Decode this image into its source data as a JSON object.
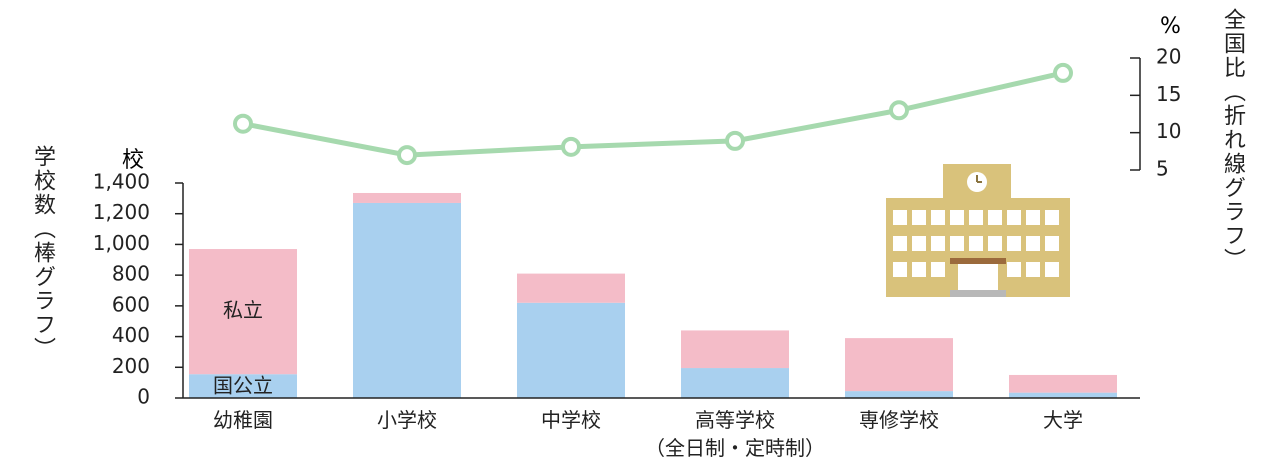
{
  "chart_data": {
    "type": "bar",
    "stacked": true,
    "y_label": "学校数（棒グラフ）",
    "y_unit": "校",
    "y2_label": "全国比（折れ線グラフ）",
    "y2_unit": "%",
    "categories": [
      "幼稚園",
      "小学校",
      "中学校",
      "高等学校\n（全日制・定時制）",
      "専修学校",
      "大学"
    ],
    "series": [
      {
        "name": "国公立",
        "color": "#a9d0ef",
        "values": [
          155,
          1270,
          620,
          195,
          45,
          35
        ]
      },
      {
        "name": "私立",
        "color": "#f4bcc8",
        "values": [
          815,
          65,
          190,
          245,
          345,
          115
        ]
      },
      {
        "type": "line",
        "axis": "y2",
        "color": "#a6d9ae",
        "values": [
          11.2,
          7.0,
          8.1,
          8.9,
          13.0,
          18.0
        ]
      }
    ],
    "ylim": [
      0,
      1400
    ],
    "yticks": [
      0,
      200,
      400,
      600,
      800,
      {
        "value": 1000,
        "label": "1,000"
      },
      {
        "value": 1200,
        "label": "1,200"
      },
      {
        "value": 1400,
        "label": "1,400"
      }
    ],
    "y2lim": [
      5,
      20
    ],
    "y2ticks": [
      5,
      10,
      15,
      20
    ]
  }
}
